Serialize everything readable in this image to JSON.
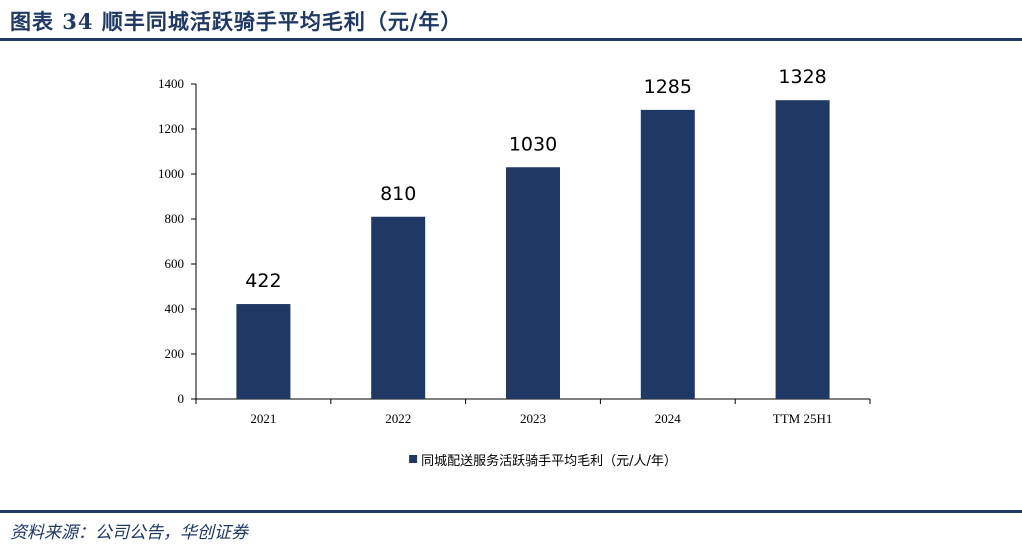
{
  "header": {
    "title": "图表 34  顺丰同城活跃骑手平均毛利（元/年）"
  },
  "footer": {
    "source": "资料来源：公司公告，华创证券"
  },
  "colors": {
    "bar": "#203864",
    "rule": "#1f3864"
  },
  "chart_data": {
    "type": "bar",
    "categories": [
      "2021",
      "2022",
      "2023",
      "2024",
      "TTM 25H1"
    ],
    "series": [
      {
        "name": "同城配送服务活跃骑手平均毛利（元/人/年）",
        "values": [
          422,
          810,
          1030,
          1285,
          1328
        ]
      }
    ],
    "ylim": [
      0,
      1400
    ],
    "yticks": [
      0,
      200,
      400,
      600,
      800,
      1000,
      1200,
      1400
    ],
    "grid": false,
    "legend_position": "bottom",
    "data_labels": [
      "422",
      "810",
      "1030",
      "1285",
      "1328"
    ]
  }
}
